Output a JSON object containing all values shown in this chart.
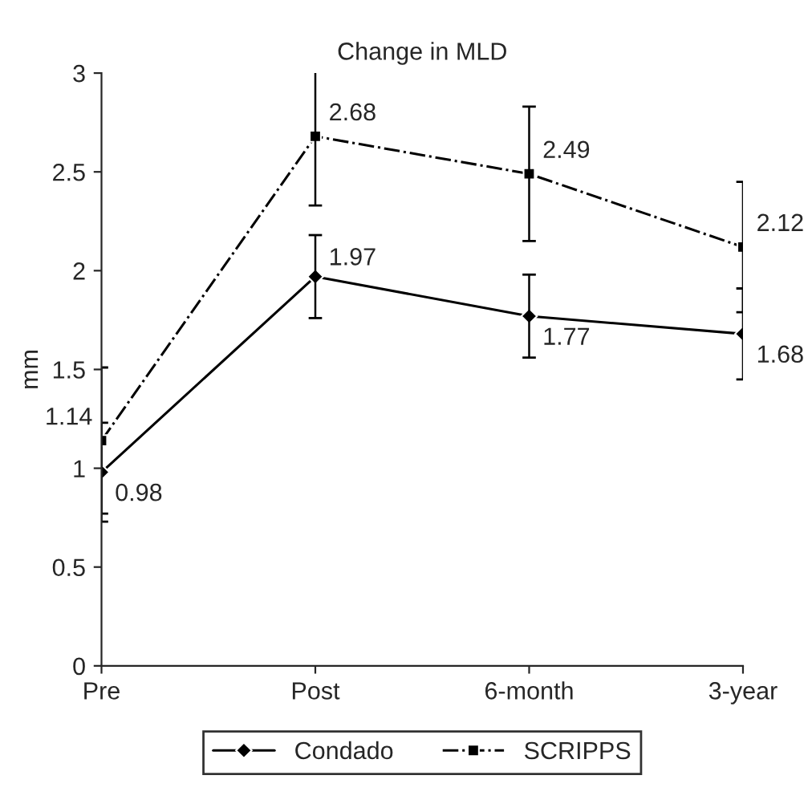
{
  "chart_data": {
    "type": "line",
    "title": "Change in MLD",
    "ylabel": "mm",
    "categories": [
      "Pre",
      "Post",
      "6-month",
      "3-year"
    ],
    "series": [
      {
        "name": "Condado",
        "color": "#000000",
        "values": [
          0.98,
          1.97,
          1.77,
          1.68
        ],
        "errors": [
          0.25,
          0.21,
          0.21,
          0.23
        ],
        "marker": "diamond",
        "line_style": "solid"
      },
      {
        "name": "SCRIPPS",
        "color": "#000000",
        "values": [
          1.14,
          2.68,
          2.49,
          2.12
        ],
        "errors": [
          0.37,
          0.35,
          0.34,
          0.33
        ],
        "marker": "square",
        "line_style": "dashdot"
      }
    ],
    "ylim": [
      0,
      3
    ],
    "yticks": [
      0,
      0.5,
      1,
      1.5,
      2,
      2.5,
      3
    ],
    "data_labels": true,
    "legend": "bottom",
    "grid": false
  }
}
